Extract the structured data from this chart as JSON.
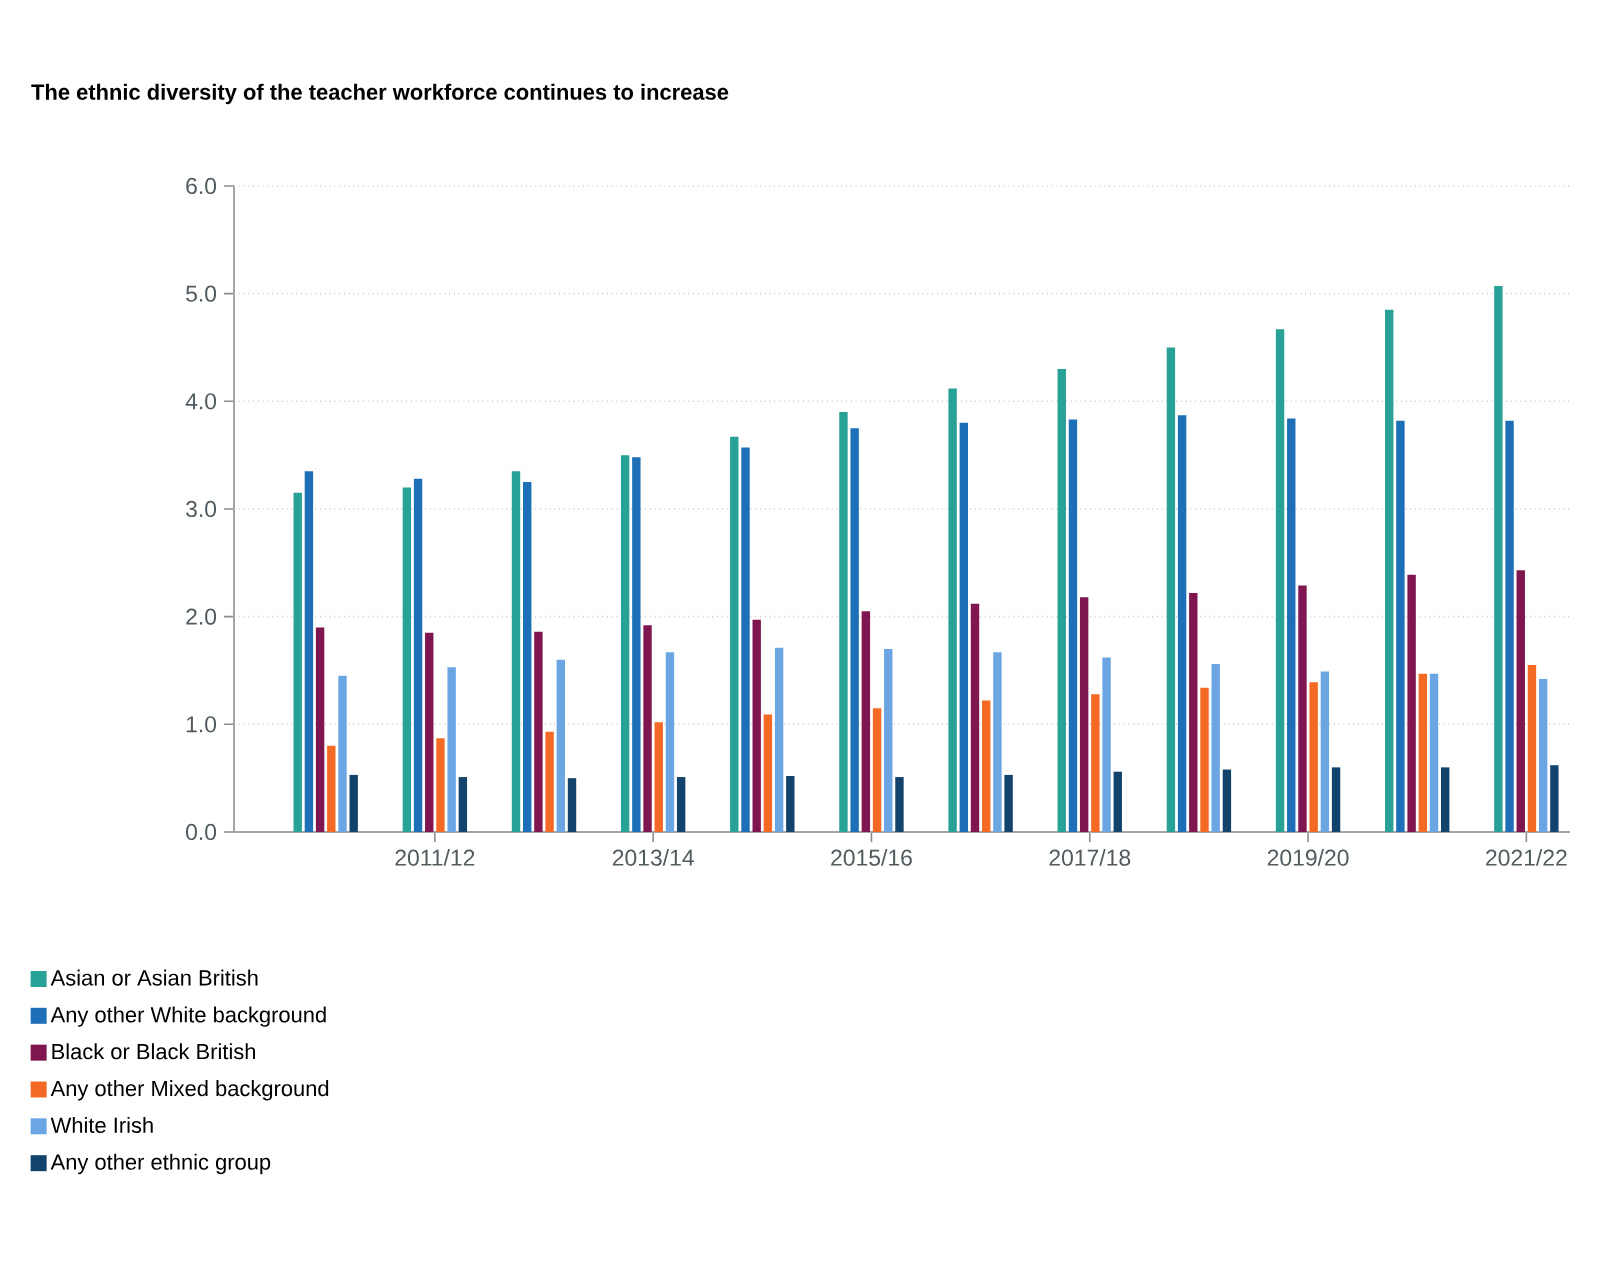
{
  "chart_data": {
    "type": "bar",
    "title": "The ethnic diversity of the teacher workforce continues to increase",
    "categories": [
      null,
      "2011/12",
      null,
      "2013/14",
      null,
      "2015/16",
      null,
      "2017/18",
      null,
      "2019/20",
      null,
      "2021/22"
    ],
    "series": [
      {
        "name": "Asian or Asian British",
        "color": "#28a197",
        "values": [
          3.15,
          3.2,
          3.35,
          3.5,
          3.67,
          3.9,
          4.12,
          4.3,
          4.5,
          4.67,
          4.85,
          5.07
        ]
      },
      {
        "name": "Any other White background",
        "color": "#1d70b8",
        "values": [
          3.35,
          3.28,
          3.25,
          3.48,
          3.57,
          3.75,
          3.8,
          3.83,
          3.87,
          3.84,
          3.82,
          3.82
        ]
      },
      {
        "name": "Black or Black British",
        "color": "#801650",
        "values": [
          1.9,
          1.85,
          1.86,
          1.92,
          1.97,
          2.05,
          2.12,
          2.18,
          2.22,
          2.29,
          2.39,
          2.43
        ]
      },
      {
        "name": "Any other Mixed background",
        "color": "#f46a25",
        "values": [
          0.8,
          0.87,
          0.93,
          1.02,
          1.09,
          1.15,
          1.22,
          1.28,
          1.34,
          1.39,
          1.47,
          1.55
        ]
      },
      {
        "name": "White Irish",
        "color": "#6ca6e2",
        "values": [
          1.45,
          1.53,
          1.6,
          1.67,
          1.71,
          1.7,
          1.67,
          1.62,
          1.56,
          1.49,
          1.47,
          1.42
        ]
      },
      {
        "name": "Any other ethnic group",
        "color": "#12436d",
        "values": [
          0.53,
          0.51,
          0.5,
          0.51,
          0.52,
          0.51,
          0.53,
          0.56,
          0.58,
          0.6,
          0.6,
          0.62
        ]
      }
    ],
    "ylim": [
      0,
      6
    ],
    "yticks": [
      {
        "value": 0,
        "label": "0.0"
      },
      {
        "value": 1,
        "label": "1.0"
      },
      {
        "value": 2,
        "label": "2.0"
      },
      {
        "value": 3,
        "label": "3.0"
      },
      {
        "value": 4,
        "label": "4.0"
      },
      {
        "value": 5,
        "label": "5.0"
      },
      {
        "value": 6,
        "label": "6.0"
      }
    ],
    "grid": "y",
    "legend": "bottom"
  }
}
